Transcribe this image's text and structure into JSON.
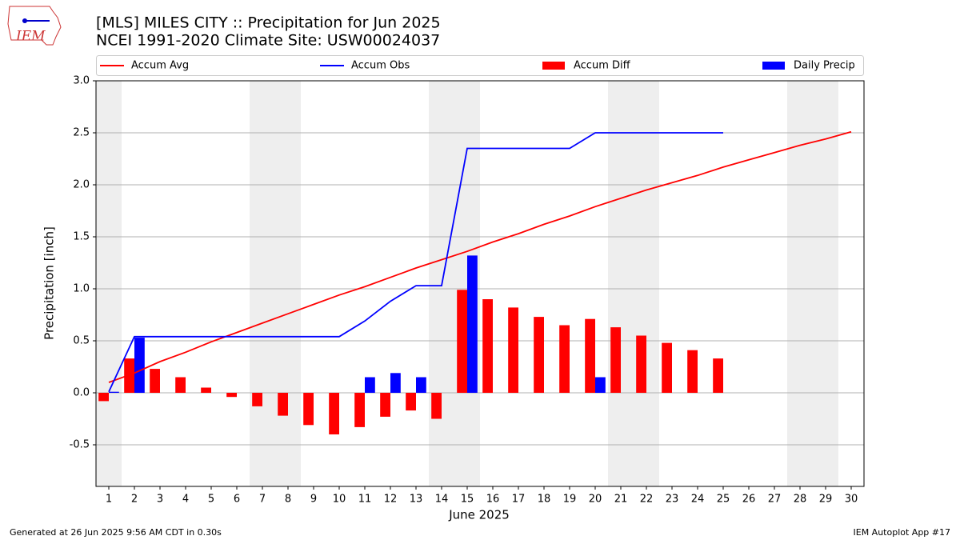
{
  "logo_text": "IEM",
  "footer_left": "Generated at 26 Jun 2025 9:56 AM CDT in 0.30s",
  "footer_right": "IEM Autoplot App #17",
  "chart_data": {
    "type": "bar",
    "title": "[MLS] MILES CITY :: Precipitation for Jun 2025",
    "subtitle": "NCEI 1991-2020 Climate Site: USW00024037",
    "xlabel": "June 2025",
    "ylabel": "Precipitation [inch]",
    "x": [
      1,
      2,
      3,
      4,
      5,
      6,
      7,
      8,
      9,
      10,
      11,
      12,
      13,
      14,
      15,
      16,
      17,
      18,
      19,
      20,
      21,
      22,
      23,
      24,
      25,
      26,
      27,
      28,
      29,
      30
    ],
    "xlim": [
      0.5,
      30.5
    ],
    "xticks": [
      1,
      2,
      3,
      4,
      5,
      6,
      7,
      8,
      9,
      10,
      11,
      12,
      13,
      14,
      15,
      16,
      17,
      18,
      19,
      20,
      21,
      22,
      23,
      24,
      25,
      26,
      27,
      28,
      29,
      30
    ],
    "ylim": [
      -0.9,
      3.0
    ],
    "yticks": [
      -0.5,
      {
        "value": 0,
        "label": "0.0"
      },
      0.5,
      {
        "value": 1,
        "label": "1.0"
      },
      1.5,
      {
        "value": 2,
        "label": "2.0"
      },
      2.5,
      {
        "value": 3,
        "label": "3.0"
      }
    ],
    "grid": true,
    "shaded_days": [
      1,
      7,
      8,
      14,
      15,
      21,
      22,
      28,
      29
    ],
    "shade_color": "#eeeeee",
    "legend": "top",
    "series": [
      {
        "name": "Accum Avg",
        "type": "line",
        "color": "#ff0000",
        "values": [
          0.1,
          0.19,
          0.3,
          0.39,
          0.49,
          0.58,
          0.67,
          0.76,
          0.85,
          0.94,
          1.02,
          1.11,
          1.2,
          1.28,
          1.36,
          1.45,
          1.53,
          1.62,
          1.7,
          1.79,
          1.87,
          1.95,
          2.02,
          2.09,
          2.17,
          2.24,
          2.31,
          2.38,
          2.44,
          2.51
        ]
      },
      {
        "name": "Accum Obs",
        "type": "line",
        "color": "#0000ff",
        "values": [
          0.01,
          0.54,
          0.54,
          0.54,
          0.54,
          0.54,
          0.54,
          0.54,
          0.54,
          0.54,
          0.69,
          0.88,
          1.03,
          1.03,
          2.35,
          2.35,
          2.35,
          2.35,
          2.35,
          2.5,
          2.5,
          2.5,
          2.5,
          2.5,
          2.5,
          null,
          null,
          null,
          null,
          null
        ]
      },
      {
        "name": "Accum Diff",
        "type": "bar",
        "color": "#ff0000",
        "values": [
          -0.08,
          0.33,
          0.23,
          0.15,
          0.05,
          -0.04,
          -0.13,
          -0.22,
          -0.31,
          -0.4,
          -0.33,
          -0.23,
          -0.17,
          -0.25,
          0.99,
          0.9,
          0.82,
          0.73,
          0.65,
          0.71,
          0.63,
          0.55,
          0.48,
          0.41,
          0.33,
          null,
          null,
          null,
          null,
          null
        ]
      },
      {
        "name": "Daily Precip",
        "type": "bar",
        "color": "#0000ff",
        "values": [
          0.01,
          0.53,
          0,
          0,
          0,
          0,
          0,
          0,
          0,
          0,
          0.15,
          0.19,
          0.15,
          0,
          1.32,
          0,
          0,
          0,
          0,
          0.15,
          0,
          0,
          0,
          0,
          0,
          null,
          null,
          null,
          null,
          null
        ]
      }
    ]
  }
}
